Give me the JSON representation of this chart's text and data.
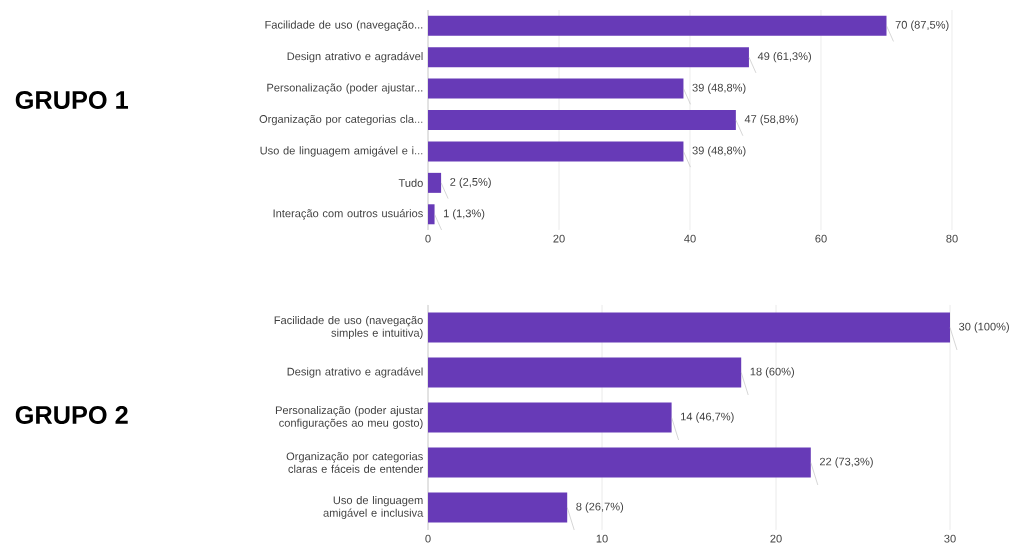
{
  "chart_data": [
    {
      "type": "bar",
      "orientation": "horizontal",
      "title": "GRUPO 1",
      "color": "#673ab7",
      "grid": "x",
      "categories": [
        "Facilidade de uso (navegação...",
        "Design atrativo e agradável",
        "Personalização (poder ajustar...",
        "Organização por categorias cla...",
        "Uso de linguagem amigável e i...",
        "Tudo",
        "Interação com outros usuários"
      ],
      "values": [
        70,
        49,
        39,
        47,
        39,
        2,
        1
      ],
      "value_labels": [
        "70 (87,5%)",
        "49 (61,3%)",
        "39 (48,8%)",
        "47 (58,8%)",
        "39 (48,8%)",
        "2 (2,5%)",
        "1 (1,3%)"
      ],
      "xlim": [
        0,
        80
      ],
      "xticks": [
        0,
        20,
        40,
        60,
        80
      ]
    },
    {
      "type": "bar",
      "orientation": "horizontal",
      "title": "GRUPO 2",
      "color": "#673ab7",
      "grid": "x",
      "categories": [
        "Facilidade de uso (navegação simples e intuitiva)",
        "Design atrativo e agradável",
        "Personalização (poder ajustar configurações ao meu gosto)",
        "Organização por categorias claras e fáceis de entender",
        "Uso de linguagem amigável e inclusiva"
      ],
      "values": [
        30,
        18,
        14,
        22,
        8
      ],
      "value_labels": [
        "30 (100%)",
        "18 (60%)",
        "14 (46,7%)",
        "22 (73,3%)",
        "8 (26,7%)"
      ],
      "xlim": [
        0,
        30
      ],
      "xticks": [
        0,
        10,
        20,
        30
      ]
    }
  ]
}
